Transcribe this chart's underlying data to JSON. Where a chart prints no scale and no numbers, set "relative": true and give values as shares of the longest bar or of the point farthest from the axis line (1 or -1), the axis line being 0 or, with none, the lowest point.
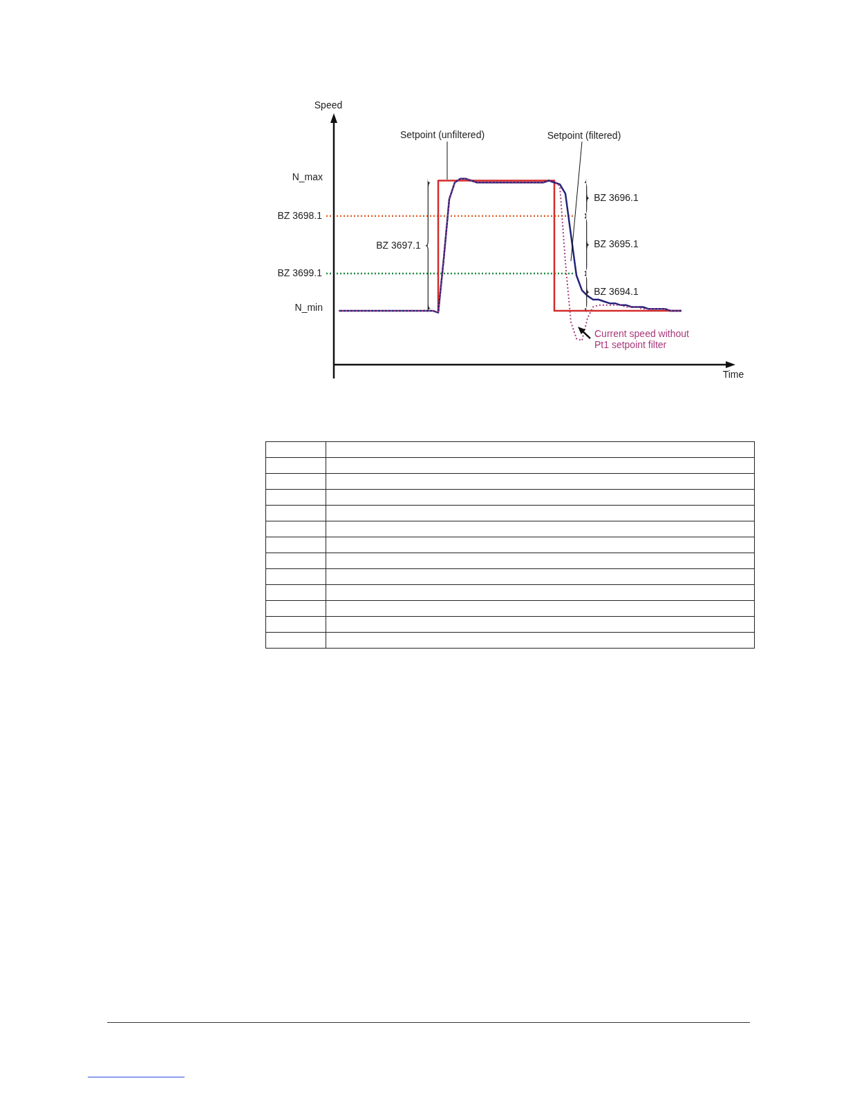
{
  "chart_data": {
    "type": "line",
    "relative": true,
    "xlabel": "Time",
    "categories": [
      null,
      null,
      null,
      null,
      null,
      null,
      null,
      null,
      null,
      null,
      null,
      null,
      null,
      null,
      null,
      null,
      null,
      null,
      null,
      null,
      null,
      null,
      null,
      null,
      null,
      null,
      null,
      null,
      null,
      null,
      null,
      null,
      null,
      null,
      null,
      null,
      null,
      null,
      null,
      null,
      null,
      null,
      null,
      null,
      null,
      null,
      null,
      null,
      null,
      null,
      null,
      null,
      null,
      null,
      null,
      null,
      null,
      null,
      null,
      null,
      null,
      null,
      null
    ],
    "series": [
      {
        "name": "Setpoint (unfiltered)",
        "type": "step",
        "color": "#d42a2a",
        "line_style": "solid",
        "values": [
          null,
          null,
          null,
          null,
          null,
          null,
          null,
          null,
          null,
          null,
          null,
          null,
          null,
          null,
          null,
          null,
          null,
          null,
          0.29,
          0.99,
          0.99,
          0.99,
          0.99,
          0.99,
          0.99,
          0.99,
          0.99,
          0.99,
          0.99,
          0.99,
          0.99,
          0.99,
          0.99,
          0.99,
          0.99,
          0.99,
          0.99,
          0.99,
          0.99,
          0.99,
          0.29,
          0.29,
          0.29,
          0.29,
          0.29,
          0.29,
          0.29,
          0.29,
          0.29,
          0.29,
          0.29,
          0.29,
          0.29,
          0.29,
          0.29,
          0.29,
          0.29,
          0.29,
          0.29,
          0.29,
          0.29,
          0.29,
          0.29
        ]
      },
      {
        "name": "Setpoint (filtered)",
        "type": "line",
        "color": "#22237a",
        "line_style": "solid",
        "values": [
          0.29,
          0.29,
          0.29,
          0.29,
          0.29,
          0.29,
          0.29,
          0.29,
          0.29,
          0.29,
          0.29,
          0.29,
          0.29,
          0.29,
          0.29,
          0.29,
          0.29,
          0.29,
          0.28,
          0.57,
          0.89,
          0.98,
          1,
          1,
          0.99,
          0.98,
          0.98,
          0.98,
          0.98,
          0.98,
          0.98,
          0.98,
          0.98,
          0.98,
          0.98,
          0.98,
          0.98,
          0.98,
          0.99,
          0.98,
          0.97,
          0.92,
          0.7,
          0.48,
          0.4,
          0.37,
          0.35,
          0.35,
          0.34,
          0.33,
          0.33,
          0.32,
          0.32,
          0.31,
          0.31,
          0.31,
          0.3,
          0.3,
          0.3,
          0.3,
          0.29,
          0.29,
          0.29
        ]
      },
      {
        "name": "Current speed without Pt1 setpoint filter",
        "type": "line",
        "color": "#a8387a",
        "line_style": "dotted",
        "values": [
          0.29,
          0.29,
          0.29,
          0.29,
          0.29,
          0.29,
          0.29,
          0.29,
          0.29,
          0.29,
          0.29,
          0.29,
          0.29,
          0.29,
          0.29,
          0.29,
          0.29,
          0.29,
          0.28,
          0.57,
          0.89,
          0.98,
          1,
          1,
          0.99,
          0.98,
          0.98,
          0.98,
          0.98,
          0.98,
          0.98,
          0.98,
          0.98,
          0.98,
          0.98,
          0.98,
          0.98,
          0.98,
          0.99,
          0.99,
          0.96,
          0.55,
          0.23,
          0.14,
          0.13,
          0.25,
          0.31,
          0.32,
          0.32,
          0.32,
          0.32,
          0.32,
          0.31,
          0.31,
          0.31,
          0.3,
          0.3,
          0.3,
          0.3,
          0.3,
          0.29,
          0.29,
          0.29
        ]
      }
    ],
    "ref_lines": [
      {
        "axis": "y",
        "value": 0.8,
        "label": "BZ 3698.1",
        "color": "#e0662a",
        "line_style": "dotted"
      },
      {
        "axis": "y",
        "value": 0.49,
        "label": "BZ 3699.1",
        "color": "#1e8a3c",
        "line_style": "dotted"
      }
    ],
    "annotations": [
      "N_max",
      "N_min",
      "Speed",
      "BZ 3697.1",
      "BZ 3696.1",
      "BZ 3695.1",
      "BZ 3694.1"
    ]
  }
}
